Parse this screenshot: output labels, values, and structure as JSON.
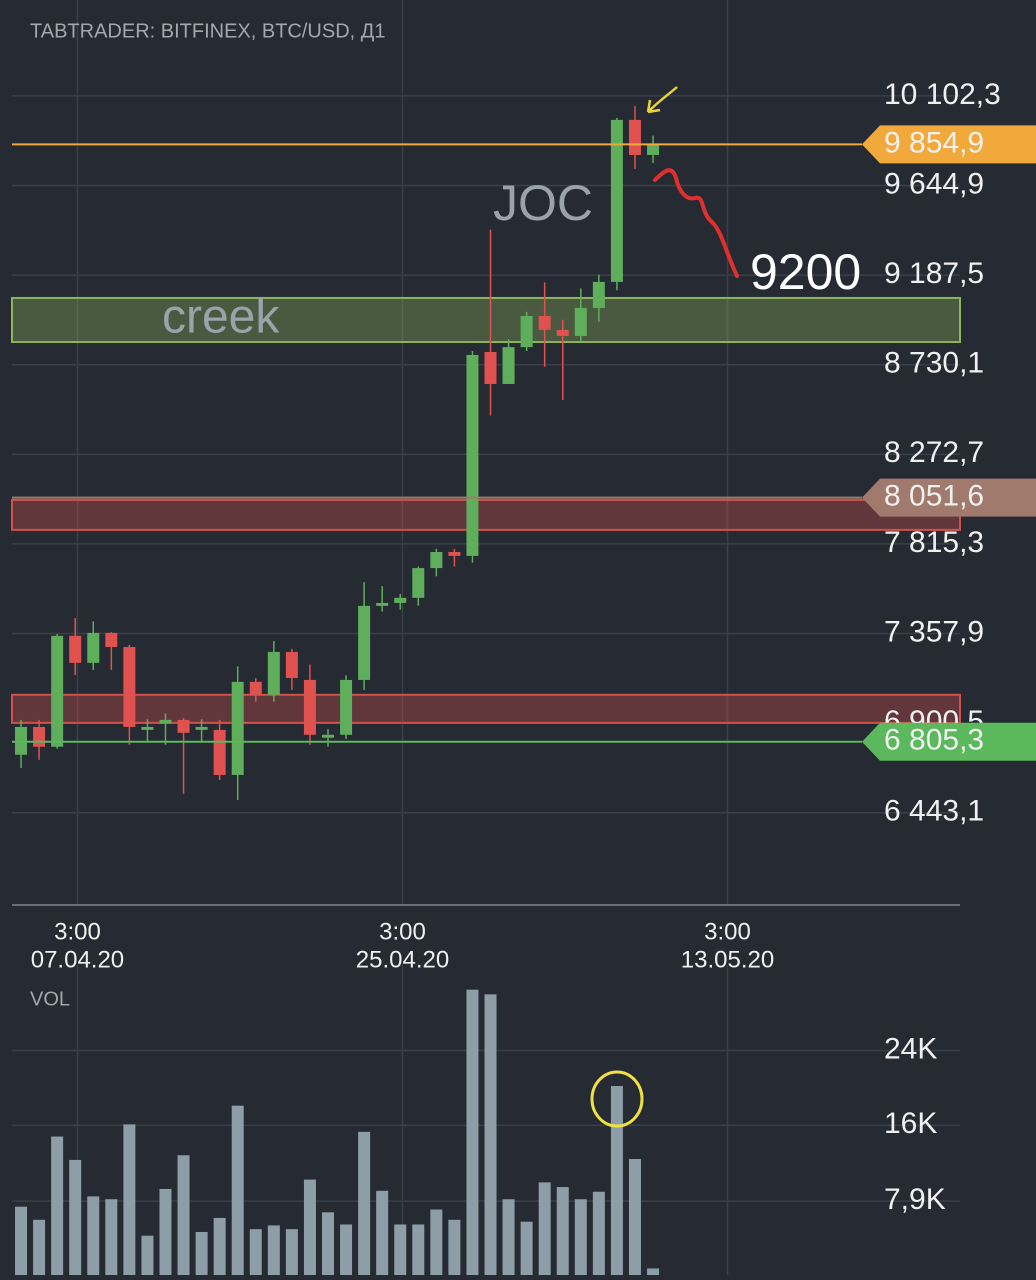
{
  "chart_data": [
    {
      "type": "candlestick",
      "title": "TABTRADER: BITFINEX, BTC/USD, Д1",
      "x": [
        "2020-04-04",
        "2020-04-05",
        "2020-04-06",
        "2020-04-07",
        "2020-04-08",
        "2020-04-09",
        "2020-04-10",
        "2020-04-11",
        "2020-04-12",
        "2020-04-13",
        "2020-04-14",
        "2020-04-15",
        "2020-04-16",
        "2020-04-17",
        "2020-04-18",
        "2020-04-19",
        "2020-04-20",
        "2020-04-21",
        "2020-04-22",
        "2020-04-23",
        "2020-04-24",
        "2020-04-25",
        "2020-04-26",
        "2020-04-27",
        "2020-04-28",
        "2020-04-29",
        "2020-04-30",
        "2020-05-01",
        "2020-05-02",
        "2020-05-03",
        "2020-05-04",
        "2020-05-05",
        "2020-05-06",
        "2020-05-07",
        "2020-05-08",
        "2020-05-09"
      ],
      "open": [
        6739,
        6881,
        6780,
        7346,
        7208,
        7361,
        7289,
        6866,
        6897,
        6917,
        6866,
        6866,
        6636,
        7111,
        7045,
        7264,
        7121,
        6826,
        6841,
        7121,
        7499,
        7514,
        7540,
        7692,
        7774,
        7754,
        8795,
        8632,
        8820,
        8979,
        8908,
        8877,
        9020,
        9153,
        9980,
        9801
      ],
      "high": [
        6917,
        6917,
        7355,
        7437,
        7420,
        7365,
        7300,
        6920,
        6950,
        6927,
        6920,
        6917,
        7190,
        7130,
        7320,
        7280,
        7200,
        6870,
        7145,
        7620,
        7600,
        7560,
        7700,
        7790,
        7790,
        8800,
        9420,
        8860,
        9000,
        9150,
        8960,
        9120,
        9190,
        9990,
        10050,
        9900
      ],
      "low": [
        6671,
        6713,
        6770,
        7146,
        7172,
        7172,
        6790,
        6800,
        6790,
        6540,
        6800,
        6610,
        6508,
        7010,
        7010,
        7070,
        6790,
        6780,
        6820,
        7070,
        7470,
        7480,
        7500,
        7650,
        7700,
        7720,
        8470,
        8632,
        8800,
        8720,
        8550,
        8850,
        8950,
        9110,
        9730,
        9760
      ],
      "close": [
        6881,
        6780,
        7346,
        7208,
        7361,
        7289,
        6881,
        6881,
        6917,
        6851,
        6881,
        6636,
        7111,
        7045,
        7264,
        7131,
        6841,
        6841,
        7121,
        7499,
        7514,
        7540,
        7692,
        7774,
        7754,
        8780,
        8632,
        8820,
        8979,
        8908,
        8877,
        9020,
        9153,
        9980,
        9801,
        9852
      ],
      "up_color": "#5fae5b",
      "down_color": "#e0524f",
      "xlim": [
        "2020-04-03T12:00",
        "2020-05-26T00:00"
      ],
      "xticks": [
        {
          "value": "2020-04-07T03:00",
          "label": [
            "3:00",
            "07.04.20"
          ]
        },
        {
          "value": "2020-04-25T03:00",
          "label": [
            "3:00",
            "25.04.20"
          ]
        },
        {
          "value": "2020-05-13T03:00",
          "label": [
            "3:00",
            "13.05.20"
          ]
        }
      ],
      "ylim": [
        5972,
        10541
      ],
      "yticks": [
        {
          "value": 10102.3,
          "label": "10 102,3"
        },
        {
          "value": 9644.9,
          "label": "9 644,9"
        },
        {
          "value": 9187.5,
          "label": "9 187,5"
        },
        {
          "value": 8730.1,
          "label": "8 730,1"
        },
        {
          "value": 8272.7,
          "label": "8 272,7"
        },
        {
          "value": 7815.3,
          "label": "7 815,3"
        },
        {
          "value": 7357.9,
          "label": "7 357,9"
        },
        {
          "value": 6900.5,
          "label": "6 900,5"
        },
        {
          "value": 6443.1,
          "label": "6 443,1"
        }
      ],
      "grid": true,
      "zones": [
        {
          "from": 8846,
          "to": 9071,
          "color": "#8cb45a",
          "label": "creek"
        },
        {
          "from": 7887,
          "to": 8040,
          "color": "#d0504a"
        },
        {
          "from": 6902,
          "to": 7045,
          "color": "#d0504a"
        }
      ],
      "price_lines": [
        {
          "value": 9854.9,
          "label": "9 854,9",
          "color": "#f2a93b"
        },
        {
          "value": 8051.6,
          "label": "8 051,6",
          "color": "#a07a6c"
        },
        {
          "value": 6805.3,
          "label": "6 805,3",
          "color": "#5cb85c"
        }
      ],
      "annotations": [
        "JOC",
        "9200"
      ]
    },
    {
      "type": "bar",
      "title": "VOL",
      "x": [
        "2020-04-04",
        "2020-04-05",
        "2020-04-06",
        "2020-04-07",
        "2020-04-08",
        "2020-04-09",
        "2020-04-10",
        "2020-04-11",
        "2020-04-12",
        "2020-04-13",
        "2020-04-14",
        "2020-04-15",
        "2020-04-16",
        "2020-04-17",
        "2020-04-18",
        "2020-04-19",
        "2020-04-20",
        "2020-04-21",
        "2020-04-22",
        "2020-04-23",
        "2020-04-24",
        "2020-04-25",
        "2020-04-26",
        "2020-04-27",
        "2020-04-28",
        "2020-04-29",
        "2020-04-30",
        "2020-05-01",
        "2020-05-02",
        "2020-05-03",
        "2020-05-04",
        "2020-05-05",
        "2020-05-06",
        "2020-05-07",
        "2020-05-08",
        "2020-05-09"
      ],
      "values": [
        7300,
        5900,
        14800,
        12300,
        8400,
        8100,
        16100,
        4200,
        9200,
        12800,
        4600,
        6100,
        18100,
        4900,
        5300,
        4900,
        10200,
        6700,
        5400,
        15300,
        9000,
        5400,
        5400,
        7000,
        5900,
        30500,
        30000,
        8100,
        5700,
        9900,
        9400,
        8100,
        8900,
        20200,
        12400,
        700
      ],
      "color": "#8d9ea9",
      "ylim": [
        0,
        31000
      ],
      "yticks": [
        {
          "value": 7900,
          "label": "7,9K"
        },
        {
          "value": 16000,
          "label": "16K"
        },
        {
          "value": 24000,
          "label": "24K"
        }
      ],
      "grid": true
    }
  ]
}
